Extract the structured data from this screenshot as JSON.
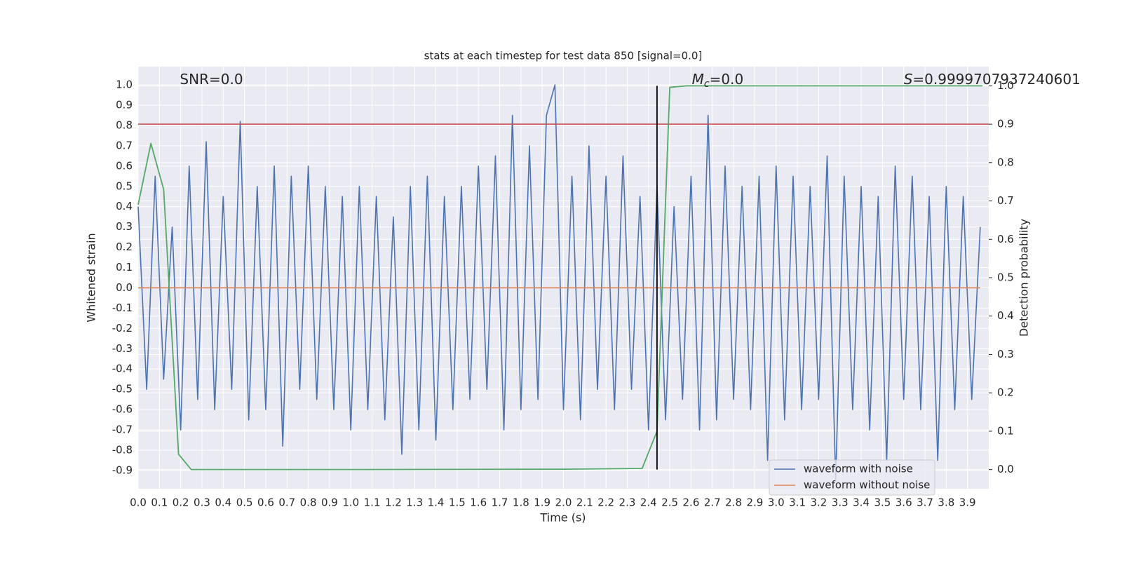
{
  "chart_data": {
    "type": "line",
    "title": "stats at each timestep for test data 850 [signal=0.0]",
    "x_label": "Time (s)",
    "y_label": "Whitened strain",
    "y2_label": "Detection probability",
    "xlim": [
      0,
      4.0
    ],
    "ylim": [
      -0.99,
      1.09
    ],
    "y2lim": [
      -0.05,
      1.05
    ],
    "grid": true,
    "legend": "lower right",
    "xticks": [
      {
        "value": 0,
        "label": "0.0"
      },
      0.1,
      0.2,
      0.3,
      0.4,
      0.5,
      0.6,
      0.7,
      0.8,
      0.9,
      {
        "value": 1,
        "label": "1.0"
      },
      1.1,
      1.2,
      1.3,
      1.4,
      1.5,
      1.6,
      1.7,
      1.8,
      1.9,
      {
        "value": 2,
        "label": "2.0"
      },
      2.1,
      2.2,
      2.3,
      2.4,
      2.5,
      2.6,
      2.7,
      2.8,
      2.9,
      {
        "value": 3,
        "label": "3.0"
      },
      3.1,
      3.2,
      3.3,
      3.4,
      3.5,
      3.6,
      3.7,
      3.8,
      3.9
    ],
    "yticks": [
      -0.9,
      -0.8,
      -0.7,
      -0.6,
      -0.5,
      -0.4,
      -0.3,
      -0.2,
      -0.1,
      {
        "value": 0,
        "label": "0.0"
      },
      0.1,
      0.2,
      0.3,
      0.4,
      0.5,
      0.6,
      0.7,
      0.8,
      0.9,
      {
        "value": 1,
        "label": "1.0"
      }
    ],
    "y2ticks": [
      {
        "value": 0,
        "label": "0.0"
      },
      0.1,
      0.2,
      0.3,
      0.4,
      0.5,
      0.6,
      0.7,
      0.8,
      0.9,
      {
        "value": 1,
        "label": "1.0"
      }
    ],
    "x": [
      0,
      0.04,
      0.08,
      0.12,
      0.16,
      0.2,
      0.24,
      0.28,
      0.32,
      0.36,
      0.4,
      0.44,
      0.48,
      0.52,
      0.56,
      0.6,
      0.64,
      0.68,
      0.72,
      0.76,
      0.8,
      0.84,
      0.88,
      0.92,
      0.96,
      1.0,
      1.04,
      1.08,
      1.12,
      1.16,
      1.2,
      1.24,
      1.28,
      1.32,
      1.36,
      1.4,
      1.44,
      1.48,
      1.52,
      1.56,
      1.6,
      1.64,
      1.68,
      1.72,
      1.76,
      1.8,
      1.84,
      1.88,
      1.92,
      1.96,
      2.0,
      2.04,
      2.08,
      2.12,
      2.16,
      2.2,
      2.24,
      2.28,
      2.32,
      2.36,
      2.4,
      2.44,
      2.48,
      2.52,
      2.56,
      2.6,
      2.64,
      2.68,
      2.72,
      2.76,
      2.8,
      2.84,
      2.88,
      2.92,
      2.96,
      3.0,
      3.04,
      3.08,
      3.12,
      3.16,
      3.2,
      3.24,
      3.28,
      3.32,
      3.36,
      3.4,
      3.44,
      3.48,
      3.52,
      3.56,
      3.6,
      3.64,
      3.68,
      3.72,
      3.76,
      3.8,
      3.84,
      3.88,
      3.92,
      3.96
    ],
    "series": [
      {
        "name": "waveform with noise",
        "color": "#4c72b0",
        "values": [
          0.4,
          -0.5,
          0.55,
          -0.45,
          0.3,
          -0.7,
          0.6,
          -0.55,
          0.72,
          -0.6,
          0.45,
          -0.5,
          0.82,
          -0.65,
          0.5,
          -0.6,
          0.6,
          -0.78,
          0.55,
          -0.5,
          0.6,
          -0.55,
          0.5,
          -0.6,
          0.45,
          -0.7,
          0.5,
          -0.6,
          0.45,
          -0.65,
          0.35,
          -0.82,
          0.5,
          -0.7,
          0.55,
          -0.75,
          0.45,
          -0.6,
          0.5,
          -0.55,
          0.6,
          -0.5,
          0.65,
          -0.7,
          0.85,
          -0.6,
          0.7,
          -0.55,
          0.85,
          1.0,
          -0.6,
          0.55,
          -0.65,
          0.7,
          -0.5,
          0.55,
          -0.6,
          0.65,
          -0.5,
          0.45,
          -0.7,
          0.5,
          -0.65,
          0.4,
          -0.55,
          0.55,
          -0.7,
          0.85,
          -0.65,
          0.6,
          -0.55,
          0.5,
          -0.6,
          0.55,
          -0.85,
          0.6,
          -0.65,
          0.55,
          -0.6,
          0.5,
          -0.55,
          0.65,
          -0.95,
          0.55,
          -0.6,
          0.5,
          -0.7,
          0.45,
          -0.85,
          0.6,
          -0.55,
          0.55,
          -0.6,
          0.45,
          -0.85,
          0.5,
          -0.6,
          0.45,
          -0.55,
          0.3
        ]
      },
      {
        "name": "waveform without noise",
        "color": "#dd8452",
        "values": [
          0,
          0,
          0,
          0,
          0,
          0,
          0,
          0,
          0,
          0,
          0,
          0,
          0,
          0,
          0,
          0,
          0,
          0,
          0,
          0,
          0,
          0,
          0,
          0,
          0,
          0,
          0,
          0,
          0,
          0,
          0,
          0,
          0,
          0,
          0,
          0,
          0,
          0,
          0,
          0,
          0,
          0,
          0,
          0,
          0,
          0,
          0,
          0,
          0,
          0,
          0,
          0,
          0,
          0,
          0,
          0,
          0,
          0,
          0,
          0,
          0,
          0,
          0,
          0,
          0,
          0,
          0,
          0,
          0,
          0,
          0,
          0,
          0,
          0,
          0,
          0,
          0,
          0,
          0,
          0,
          0,
          0,
          0,
          0,
          0,
          0,
          0,
          0,
          0,
          0,
          0,
          0,
          0,
          0,
          0,
          0,
          0,
          0,
          0,
          0
        ]
      }
    ],
    "detection": {
      "axis": "y2",
      "color": "#55a868",
      "x": [
        0,
        0.06,
        0.12,
        0.19,
        0.25,
        1.0,
        2.0,
        2.37,
        2.44,
        2.5,
        2.58,
        3.97
      ],
      "values": [
        0.69,
        0.85,
        0.73,
        0.04,
        0,
        0,
        0.001,
        0.003,
        0.1,
        0.996,
        1.0,
        1.0
      ]
    },
    "threshold": {
      "axis": "y2",
      "color": "#c44e52",
      "value": 0.9
    },
    "marker": {
      "axis": "y2",
      "color": "#000000",
      "x": 2.44,
      "range": [
        0,
        1
      ]
    },
    "annotations": [
      {
        "text": "SNR=0.0"
      },
      {
        "symbol": "M",
        "subscript": "c",
        "text": "=0.0"
      },
      {
        "symbol": "S",
        "text": "=0.9999707937240601"
      }
    ]
  }
}
